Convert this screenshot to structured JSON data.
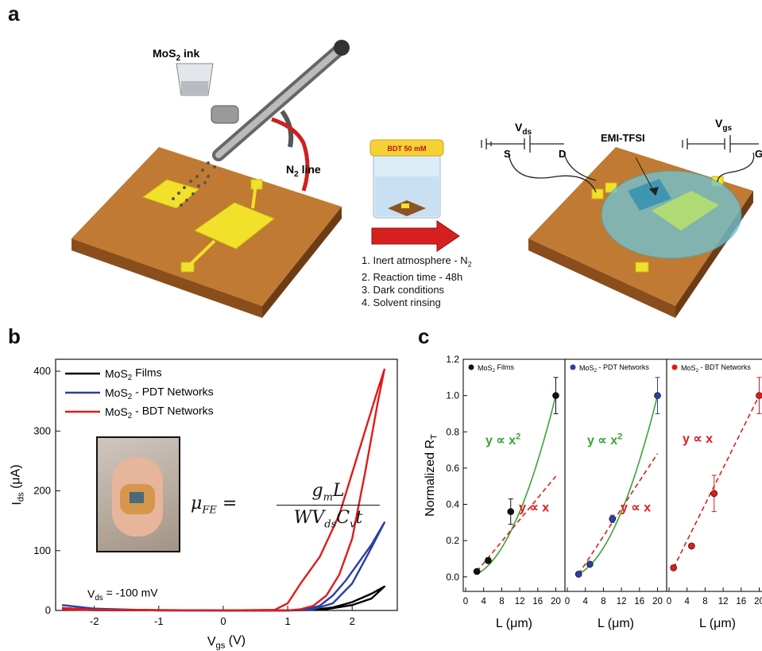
{
  "panels": {
    "a": "a",
    "b": "b",
    "c": "c"
  },
  "schematic": {
    "ink_label": "MoS",
    "ink_sub": "2",
    "ink_suffix": " ink",
    "n2_label": "N",
    "n2_sub": "2",
    "n2_suffix": " line",
    "jar_label": "BDT 50 mM",
    "steps": [
      "1. Inert atmosphere - N",
      "2. Reaction time - 48h",
      "3. Dark conditions",
      "4. Solvent rinsing"
    ],
    "step1_sub": "2",
    "vds_label": "V",
    "vds_sub": "ds",
    "vgs_label": "V",
    "vgs_sub": "gs",
    "s_label": "S",
    "d_label": "D",
    "g_label": "G",
    "electrolyte_label": "EMI-TFSI",
    "colors": {
      "substrate": "#b8702e",
      "electrode": "#f2e12a",
      "arrow": "#d62020",
      "electrolyte": "#6ec6d8"
    }
  },
  "panel_b": {
    "legend": [
      {
        "prefix": "MoS",
        "sub": "2",
        "suffix": " Films",
        "color": "#000000"
      },
      {
        "prefix": "MoS",
        "sub": "2",
        "suffix": " - PDT Networks",
        "color": "#2b3ea3"
      },
      {
        "prefix": "MoS",
        "sub": "2",
        "suffix": " - BDT Networks",
        "color": "#e01b1b"
      }
    ],
    "vds_annotation": "V",
    "vds_annotation_sub": "ds",
    "vds_annotation_value": " = -100 mV",
    "equation": {
      "lhs": "μ",
      "lhs_sub": "FE",
      "eq": "=",
      "numerator": "g",
      "numerator_sub": "m",
      "numerator_tail": "L",
      "denominator": "WV",
      "denominator_sub1": "ds",
      "denominator_mid": "C",
      "denominator_sub2": "v",
      "denominator_tail": "t"
    },
    "photo_icon": "photo-of-flexible-device-on-finger"
  },
  "chart_data": [
    {
      "type": "line",
      "xlabel": "V",
      "xlabel_sub": "gs",
      "xlabel_unit": " (V)",
      "ylabel": "I",
      "ylabel_sub": "ds",
      "ylabel_unit": " (μA)",
      "xlim": [
        -2.6,
        2.7
      ],
      "ylim": [
        0,
        420
      ],
      "xticks": [
        -2,
        -1,
        0,
        1,
        2
      ],
      "yticks": [
        0,
        100,
        200,
        300,
        400
      ],
      "series": [
        {
          "name": "MoS2 Films",
          "color": "#000000",
          "forward": [
            [
              -2.5,
              4
            ],
            [
              -2,
              1
            ],
            [
              0,
              0
            ],
            [
              1,
              0
            ],
            [
              1.6,
              2
            ],
            [
              2.0,
              9
            ],
            [
              2.3,
              20
            ],
            [
              2.5,
              40
            ]
          ],
          "backward": [
            [
              2.5,
              40
            ],
            [
              2.3,
              28
            ],
            [
              2.0,
              14
            ],
            [
              1.7,
              5
            ],
            [
              1.4,
              1
            ],
            [
              1,
              0
            ],
            [
              0,
              0
            ],
            [
              -2,
              0.5
            ],
            [
              -2.5,
              2
            ]
          ]
        },
        {
          "name": "MoS2 - PDT Networks",
          "color": "#2b3ea3",
          "forward": [
            [
              -2.5,
              9
            ],
            [
              -2,
              3
            ],
            [
              -1,
              0
            ],
            [
              0,
              0
            ],
            [
              1,
              0
            ],
            [
              1.4,
              2
            ],
            [
              1.7,
              12
            ],
            [
              2.0,
              45
            ],
            [
              2.25,
              95
            ],
            [
              2.5,
              147
            ]
          ],
          "backward": [
            [
              2.5,
              147
            ],
            [
              2.3,
              110
            ],
            [
              2.1,
              80
            ],
            [
              1.9,
              50
            ],
            [
              1.7,
              25
            ],
            [
              1.5,
              8
            ],
            [
              1.3,
              2
            ],
            [
              1,
              0
            ],
            [
              0,
              0
            ],
            [
              -2,
              1
            ],
            [
              -2.5,
              4
            ]
          ]
        },
        {
          "name": "MoS2 - BDT Networks",
          "color": "#e01b1b",
          "forward": [
            [
              -2.5,
              4
            ],
            [
              -2,
              1
            ],
            [
              0,
              0
            ],
            [
              0.8,
              1
            ],
            [
              1.0,
              12
            ],
            [
              1.2,
              45
            ],
            [
              1.5,
              90
            ],
            [
              1.8,
              160
            ],
            [
              2.0,
              230
            ],
            [
              2.2,
              300
            ],
            [
              2.4,
              370
            ],
            [
              2.5,
              403
            ]
          ],
          "backward": [
            [
              2.5,
              403
            ],
            [
              2.4,
              350
            ],
            [
              2.2,
              230
            ],
            [
              2.0,
              120
            ],
            [
              1.8,
              60
            ],
            [
              1.6,
              25
            ],
            [
              1.4,
              8
            ],
            [
              1.2,
              2
            ],
            [
              1.0,
              0
            ],
            [
              0,
              0
            ],
            [
              -2,
              0.5
            ],
            [
              -2.5,
              2
            ]
          ]
        }
      ]
    },
    {
      "type": "scatter",
      "ylabel": "Normalized R",
      "ylabel_sub": "T",
      "ylim": [
        -0.08,
        1.2
      ],
      "yticks": [
        0.0,
        0.2,
        0.4,
        0.6,
        0.8,
        1.0,
        1.2
      ],
      "xticks": [
        0,
        4,
        8,
        12,
        16,
        20
      ],
      "xlim": [
        0,
        21.5
      ],
      "subpanels": [
        {
          "legend": "MoS",
          "legend_sub": "2",
          "legend_suffix": " Films",
          "color": "#111111",
          "x": [
            2.5,
            5,
            10,
            20
          ],
          "y": [
            0.03,
            0.09,
            0.36,
            1.0
          ],
          "err": [
            0.01,
            0.015,
            0.07,
            0.1
          ],
          "xlabel": "L (μm)",
          "fits": [
            {
              "label": "y ∝ x",
              "sup": "2",
              "kind": "quadratic",
              "color": "#3aa335"
            },
            {
              "label": "y ∝ x",
              "sup": "",
              "kind": "linear",
              "color": "#e01b1b",
              "slope": 0.03
            }
          ]
        },
        {
          "legend": "MoS",
          "legend_sub": "2",
          "legend_suffix": " - PDT Networks",
          "color": "#2b3ea3",
          "x": [
            2.5,
            5,
            10,
            20
          ],
          "y": [
            0.015,
            0.07,
            0.32,
            1.0
          ],
          "err": [
            0.01,
            0.01,
            0.02,
            0.1
          ],
          "xlabel": "L (μm)",
          "fits": [
            {
              "label": "y ∝ x",
              "sup": "2",
              "kind": "quadratic",
              "color": "#3aa335"
            },
            {
              "label": "y ∝ x",
              "sup": "",
              "kind": "linear",
              "color": "#e01b1b",
              "slope": 0.038
            }
          ]
        },
        {
          "legend": "MoS",
          "legend_sub": "2",
          "legend_suffix": " - BDT Networks",
          "color": "#e01b1b",
          "x": [
            1,
            5,
            10,
            20
          ],
          "y": [
            0.05,
            0.17,
            0.46,
            1.0
          ],
          "err": [
            0.01,
            0.01,
            0.1,
            0.1
          ],
          "xlabel": "L (μm)",
          "fits": [
            {
              "label": "y ∝ x",
              "sup": "",
              "kind": "linear",
              "color": "#e01b1b",
              "slope": 0.05
            }
          ]
        }
      ]
    }
  ]
}
